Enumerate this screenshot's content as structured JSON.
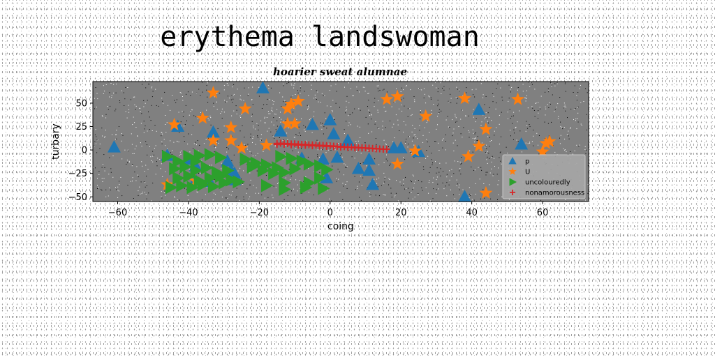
{
  "chart_data": {
    "type": "scatter",
    "title": "erythema landswoman",
    "subtitle": "hoarier sweat alumnae",
    "xlabel": "coing",
    "ylabel": "turbary",
    "xlim": [
      -67,
      73
    ],
    "ylim": [
      -55,
      73
    ],
    "xticks": [
      -60,
      -40,
      -20,
      0,
      20,
      40,
      60
    ],
    "yticks": [
      -50,
      -25,
      0,
      25,
      50
    ],
    "xtick_labels": [
      "−60",
      "−40",
      "−20",
      "0",
      "20",
      "40",
      "60"
    ],
    "ytick_labels": [
      "−50",
      "−25",
      "0",
      "25",
      "50"
    ],
    "grid": false,
    "plot_background": "#808080",
    "legend_position": "lower-right",
    "series": [
      {
        "name": "p",
        "marker": "triangle-up",
        "color": "#1f77b4",
        "points": [
          [
            -61,
            3
          ],
          [
            -19,
            66
          ],
          [
            -43,
            25
          ],
          [
            -33,
            19
          ],
          [
            -46,
            -6
          ],
          [
            -40,
            -10
          ],
          [
            -38,
            -17
          ],
          [
            -29,
            -12
          ],
          [
            -28,
            -22
          ],
          [
            -14,
            20
          ],
          [
            -5,
            27
          ],
          [
            0,
            32
          ],
          [
            1,
            17
          ],
          [
            5,
            10
          ],
          [
            -2,
            -10
          ],
          [
            2,
            -8
          ],
          [
            -1,
            -30
          ],
          [
            -8,
            -9
          ],
          [
            8,
            -20
          ],
          [
            11,
            -10
          ],
          [
            11,
            -22
          ],
          [
            12,
            -37
          ],
          [
            18,
            2
          ],
          [
            20,
            2
          ],
          [
            25,
            -2
          ],
          [
            -27,
            -32
          ],
          [
            -34,
            -34
          ],
          [
            -27,
            -28
          ],
          [
            -38,
            -32
          ],
          [
            -27,
            -25
          ],
          [
            42,
            43
          ],
          [
            54,
            6
          ],
          [
            38,
            -50
          ]
        ]
      },
      {
        "name": "U",
        "marker": "star",
        "color": "#ff7f0e",
        "points": [
          [
            -33,
            61
          ],
          [
            -36,
            34
          ],
          [
            -24,
            44
          ],
          [
            -44,
            27
          ],
          [
            -28,
            24
          ],
          [
            -28,
            10
          ],
          [
            -33,
            10
          ],
          [
            -25,
            2
          ],
          [
            -18,
            5
          ],
          [
            -12,
            44
          ],
          [
            -11,
            49
          ],
          [
            -9,
            52
          ],
          [
            -12,
            28
          ],
          [
            -10,
            28
          ],
          [
            16,
            54
          ],
          [
            19,
            57
          ],
          [
            27,
            36
          ],
          [
            24,
            -1
          ],
          [
            19,
            -15
          ],
          [
            38,
            55
          ],
          [
            44,
            22
          ],
          [
            42,
            4
          ],
          [
            39,
            -7
          ],
          [
            53,
            54
          ],
          [
            60,
            -2
          ],
          [
            62,
            9
          ],
          [
            61,
            7
          ],
          [
            44,
            -46
          ],
          [
            -46,
            -37
          ],
          [
            -38,
            -33
          ]
        ]
      },
      {
        "name": "uncolouredly",
        "marker": "triangle-right",
        "color": "#2ca02c",
        "points": [
          [
            -46,
            -7
          ],
          [
            -43,
            -12
          ],
          [
            -40,
            -7
          ],
          [
            -37,
            -6
          ],
          [
            -34,
            -5
          ],
          [
            -31,
            -8
          ],
          [
            -44,
            -20
          ],
          [
            -41,
            -18
          ],
          [
            -38,
            -22
          ],
          [
            -35,
            -19
          ],
          [
            -32,
            -24
          ],
          [
            -29,
            -22
          ],
          [
            -43,
            -30
          ],
          [
            -40,
            -28
          ],
          [
            -37,
            -33
          ],
          [
            -34,
            -30
          ],
          [
            -31,
            -28
          ],
          [
            -28,
            -32
          ],
          [
            -42,
            -38
          ],
          [
            -39,
            -40
          ],
          [
            -36,
            -37
          ],
          [
            -33,
            -39
          ],
          [
            -30,
            -35
          ],
          [
            -26,
            -34
          ],
          [
            -24,
            -10
          ],
          [
            -21,
            -14
          ],
          [
            -18,
            -16
          ],
          [
            -15,
            -19
          ],
          [
            -13,
            -24
          ],
          [
            -10,
            -20
          ],
          [
            -14,
            -7
          ],
          [
            -11,
            -9
          ],
          [
            -8,
            -12
          ],
          [
            -6,
            -15
          ],
          [
            -3,
            -17
          ],
          [
            -1,
            -21
          ],
          [
            -3,
            -30
          ],
          [
            -6,
            -35
          ],
          [
            -13,
            -35
          ],
          [
            -18,
            -38
          ],
          [
            -13,
            -42
          ],
          [
            -7,
            -40
          ],
          [
            -2,
            -41
          ],
          [
            -19,
            -22
          ],
          [
            -16,
            -25
          ],
          [
            -22,
            -18
          ],
          [
            -38,
            -12
          ],
          [
            -45,
            -40
          ]
        ]
      },
      {
        "name": "nonamorousness",
        "marker": "plus",
        "color": "#d62728",
        "points": [
          [
            -15,
            7
          ],
          [
            -14,
            7.2
          ],
          [
            -13,
            6.9
          ],
          [
            -12,
            6.8
          ],
          [
            -11,
            6.5
          ],
          [
            -10,
            6.6
          ],
          [
            -9,
            6.2
          ],
          [
            -8,
            6
          ],
          [
            -7,
            5.9
          ],
          [
            -6,
            5.6
          ],
          [
            -5,
            5.5
          ],
          [
            -4,
            5.2
          ],
          [
            -3,
            5
          ],
          [
            -2,
            4.9
          ],
          [
            -1,
            4.6
          ],
          [
            0,
            4.4
          ],
          [
            1,
            4.2
          ],
          [
            2,
            3.9
          ],
          [
            3,
            3.8
          ],
          [
            4,
            3.5
          ],
          [
            5,
            3.3
          ],
          [
            6,
            3.1
          ],
          [
            7,
            2.9
          ],
          [
            8,
            2.7
          ],
          [
            9,
            2.4
          ],
          [
            10,
            2.2
          ],
          [
            11,
            2
          ],
          [
            12,
            1.7
          ],
          [
            13,
            1.5
          ],
          [
            14,
            1.2
          ],
          [
            15,
            1
          ],
          [
            16,
            0.8
          ],
          [
            -15,
            5.8
          ],
          [
            -13,
            6
          ],
          [
            -11,
            5.5
          ],
          [
            -9,
            5.1
          ],
          [
            -7,
            4.9
          ],
          [
            -5,
            4.4
          ],
          [
            -3,
            4.1
          ],
          [
            -1,
            3.8
          ],
          [
            1,
            3.4
          ],
          [
            3,
            3
          ],
          [
            5,
            2.7
          ],
          [
            7,
            2.3
          ],
          [
            9,
            2
          ],
          [
            11,
            1.6
          ],
          [
            13,
            1.2
          ],
          [
            15,
            0.8
          ]
        ]
      }
    ]
  }
}
